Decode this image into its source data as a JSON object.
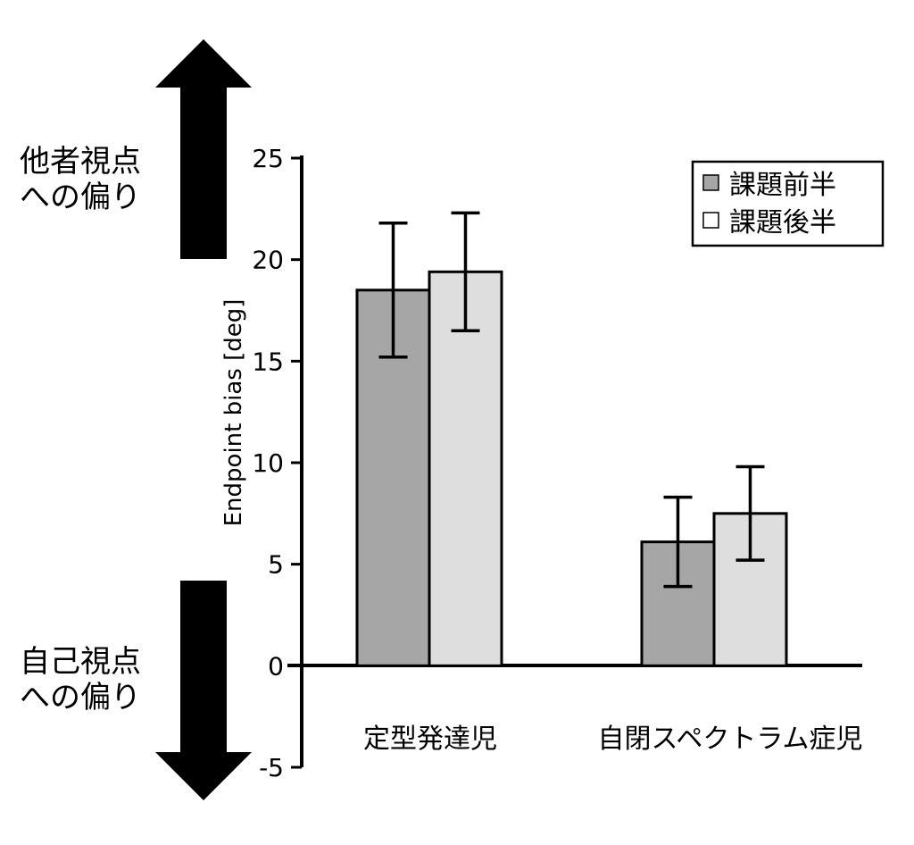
{
  "chart_data": {
    "type": "bar",
    "categories": [
      "定型発達児",
      "自閉スペクトラム症児"
    ],
    "series": [
      {
        "name": "課題前半",
        "values": [
          18.5,
          6.1
        ],
        "errors": [
          3.3,
          2.2
        ],
        "color": "#a6a6a6"
      },
      {
        "name": "課題後半",
        "values": [
          19.4,
          7.5
        ],
        "errors": [
          2.9,
          2.3
        ],
        "color": "#dedede"
      }
    ],
    "ylabel": "Endpoint bias [deg]",
    "ylim": [
      -5,
      25
    ],
    "yticks": [
      25,
      20,
      15,
      10,
      5,
      0,
      -5
    ],
    "legend_position": "top-right",
    "grid": false
  },
  "annotations": {
    "top": [
      "他者視点",
      "への偏り"
    ],
    "bottom": [
      "自己視点",
      "への偏り"
    ]
  }
}
